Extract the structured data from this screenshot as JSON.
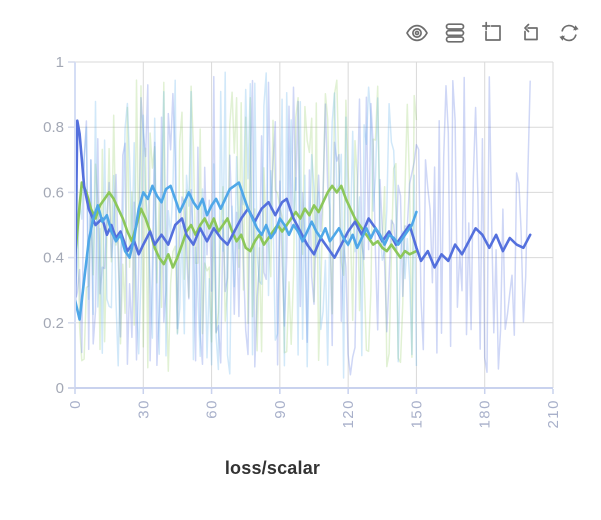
{
  "toolbar": {
    "icons": [
      {
        "name": "visibility-icon"
      },
      {
        "name": "runs-stack-icon"
      },
      {
        "name": "zoom-select-icon"
      },
      {
        "name": "undo-zoom-icon"
      },
      {
        "name": "refresh-icon"
      }
    ]
  },
  "title": "loss/scalar",
  "colors": {
    "grid": "#d9d9d9",
    "axis_line": "#c9d2ee",
    "plot_left_border": "#d5def5",
    "ytick_dash": "#d5dbeb",
    "xtick_label": "#a8b0ca",
    "ytick_label": "#a3a8b5",
    "title_text": "#333333",
    "run_green": "#8CC75A",
    "run_royal_blue": "#5470DD",
    "run_sky_blue": "#4FA7E8"
  },
  "chart_data": {
    "type": "line",
    "title": "loss/scalar",
    "xlabel": "",
    "ylabel": "",
    "xlim": [
      0,
      210
    ],
    "ylim": [
      0,
      1
    ],
    "xticks": [
      0,
      30,
      60,
      90,
      120,
      150,
      180,
      210
    ],
    "yticks": [
      0,
      0.2,
      0.4,
      0.6,
      0.8,
      1
    ],
    "ytick_labels": [
      "0",
      "0.2",
      "0.4",
      "0.6",
      "0.8",
      "1"
    ],
    "grid": true,
    "legend": "none",
    "note": "each run drawn twice: faint raw noisy trace (uniform noise within raw_value_range) and bold smoothed trace",
    "series": [
      {
        "name": "run-green",
        "color": "#8CC75A",
        "raw_opacity": 0.26,
        "raw_seed": 37,
        "raw_step_range": [
          0,
          150
        ],
        "raw_value_range": [
          0.05,
          0.95
        ],
        "smoothed": [
          [
            0,
            0.4
          ],
          [
            2,
            0.56
          ],
          [
            3,
            0.63
          ],
          [
            5,
            0.6
          ],
          [
            7,
            0.55
          ],
          [
            9,
            0.52
          ],
          [
            11,
            0.56
          ],
          [
            13,
            0.58
          ],
          [
            15,
            0.6
          ],
          [
            17,
            0.58
          ],
          [
            19,
            0.55
          ],
          [
            21,
            0.52
          ],
          [
            23,
            0.48
          ],
          [
            25,
            0.45
          ],
          [
            27,
            0.5
          ],
          [
            29,
            0.55
          ],
          [
            31,
            0.52
          ],
          [
            33,
            0.48
          ],
          [
            35,
            0.43
          ],
          [
            37,
            0.4
          ],
          [
            39,
            0.38
          ],
          [
            41,
            0.41
          ],
          [
            43,
            0.37
          ],
          [
            45,
            0.4
          ],
          [
            47,
            0.44
          ],
          [
            49,
            0.48
          ],
          [
            51,
            0.5
          ],
          [
            53,
            0.47
          ],
          [
            55,
            0.5
          ],
          [
            57,
            0.52
          ],
          [
            59,
            0.49
          ],
          [
            61,
            0.52
          ],
          [
            63,
            0.48
          ],
          [
            65,
            0.5
          ],
          [
            67,
            0.52
          ],
          [
            69,
            0.48
          ],
          [
            71,
            0.45
          ],
          [
            73,
            0.47
          ],
          [
            75,
            0.43
          ],
          [
            77,
            0.42
          ],
          [
            79,
            0.45
          ],
          [
            81,
            0.47
          ],
          [
            83,
            0.44
          ],
          [
            85,
            0.46
          ],
          [
            87,
            0.48
          ],
          [
            89,
            0.5
          ],
          [
            91,
            0.48
          ],
          [
            93,
            0.5
          ],
          [
            95,
            0.52
          ],
          [
            97,
            0.54
          ],
          [
            99,
            0.52
          ],
          [
            101,
            0.55
          ],
          [
            103,
            0.53
          ],
          [
            105,
            0.56
          ],
          [
            107,
            0.54
          ],
          [
            109,
            0.57
          ],
          [
            111,
            0.6
          ],
          [
            113,
            0.62
          ],
          [
            115,
            0.6
          ],
          [
            117,
            0.62
          ],
          [
            119,
            0.58
          ],
          [
            121,
            0.55
          ],
          [
            123,
            0.52
          ],
          [
            125,
            0.5
          ],
          [
            127,
            0.48
          ],
          [
            129,
            0.46
          ],
          [
            131,
            0.44
          ],
          [
            133,
            0.45
          ],
          [
            135,
            0.43
          ],
          [
            137,
            0.42
          ],
          [
            139,
            0.44
          ],
          [
            141,
            0.42
          ],
          [
            143,
            0.4
          ],
          [
            145,
            0.42
          ],
          [
            147,
            0.41
          ],
          [
            150,
            0.42
          ]
        ]
      },
      {
        "name": "run-royal-blue",
        "color": "#5470DD",
        "raw_opacity": 0.28,
        "raw_seed": 11,
        "raw_step_range": [
          0,
          200
        ],
        "raw_value_range": [
          0.04,
          0.96
        ],
        "smoothed": [
          [
            0,
            0.28
          ],
          [
            1,
            0.82
          ],
          [
            2,
            0.78
          ],
          [
            4,
            0.62
          ],
          [
            6,
            0.55
          ],
          [
            9,
            0.5
          ],
          [
            12,
            0.52
          ],
          [
            14,
            0.47
          ],
          [
            16,
            0.5
          ],
          [
            18,
            0.46
          ],
          [
            20,
            0.48
          ],
          [
            23,
            0.42
          ],
          [
            26,
            0.45
          ],
          [
            28,
            0.41
          ],
          [
            30,
            0.44
          ],
          [
            33,
            0.48
          ],
          [
            35,
            0.44
          ],
          [
            38,
            0.47
          ],
          [
            41,
            0.44
          ],
          [
            44,
            0.5
          ],
          [
            47,
            0.52
          ],
          [
            49,
            0.47
          ],
          [
            52,
            0.44
          ],
          [
            55,
            0.49
          ],
          [
            58,
            0.45
          ],
          [
            61,
            0.49
          ],
          [
            64,
            0.46
          ],
          [
            67,
            0.44
          ],
          [
            70,
            0.48
          ],
          [
            73,
            0.52
          ],
          [
            76,
            0.55
          ],
          [
            79,
            0.51
          ],
          [
            82,
            0.55
          ],
          [
            85,
            0.57
          ],
          [
            88,
            0.53
          ],
          [
            91,
            0.57
          ],
          [
            93,
            0.58
          ],
          [
            96,
            0.52
          ],
          [
            99,
            0.48
          ],
          [
            102,
            0.44
          ],
          [
            105,
            0.41
          ],
          [
            108,
            0.46
          ],
          [
            111,
            0.43
          ],
          [
            114,
            0.4
          ],
          [
            117,
            0.44
          ],
          [
            120,
            0.48
          ],
          [
            123,
            0.51
          ],
          [
            126,
            0.47
          ],
          [
            129,
            0.52
          ],
          [
            132,
            0.49
          ],
          [
            135,
            0.45
          ],
          [
            138,
            0.48
          ],
          [
            141,
            0.44
          ],
          [
            144,
            0.47
          ],
          [
            147,
            0.5
          ],
          [
            150,
            0.43
          ],
          [
            152,
            0.39
          ],
          [
            155,
            0.42
          ],
          [
            158,
            0.37
          ],
          [
            161,
            0.41
          ],
          [
            164,
            0.39
          ],
          [
            167,
            0.44
          ],
          [
            170,
            0.41
          ],
          [
            173,
            0.45
          ],
          [
            176,
            0.49
          ],
          [
            179,
            0.47
          ],
          [
            182,
            0.43
          ],
          [
            185,
            0.47
          ],
          [
            188,
            0.42
          ],
          [
            191,
            0.46
          ],
          [
            194,
            0.44
          ],
          [
            197,
            0.43
          ],
          [
            200,
            0.47
          ]
        ]
      },
      {
        "name": "run-sky-blue",
        "color": "#4FA7E8",
        "raw_opacity": 0.26,
        "raw_seed": 23,
        "raw_step_range": [
          0,
          150
        ],
        "raw_value_range": [
          0.03,
          0.97
        ],
        "smoothed": [
          [
            0,
            0.27
          ],
          [
            2,
            0.21
          ],
          [
            4,
            0.33
          ],
          [
            6,
            0.45
          ],
          [
            8,
            0.52
          ],
          [
            10,
            0.56
          ],
          [
            12,
            0.51
          ],
          [
            14,
            0.53
          ],
          [
            16,
            0.48
          ],
          [
            18,
            0.45
          ],
          [
            20,
            0.47
          ],
          [
            22,
            0.42
          ],
          [
            24,
            0.4
          ],
          [
            26,
            0.46
          ],
          [
            28,
            0.55
          ],
          [
            30,
            0.6
          ],
          [
            32,
            0.58
          ],
          [
            34,
            0.62
          ],
          [
            36,
            0.59
          ],
          [
            38,
            0.57
          ],
          [
            40,
            0.61
          ],
          [
            42,
            0.62
          ],
          [
            44,
            0.58
          ],
          [
            46,
            0.54
          ],
          [
            48,
            0.57
          ],
          [
            50,
            0.6
          ],
          [
            52,
            0.57
          ],
          [
            54,
            0.55
          ],
          [
            56,
            0.58
          ],
          [
            58,
            0.53
          ],
          [
            60,
            0.56
          ],
          [
            62,
            0.58
          ],
          [
            64,
            0.55
          ],
          [
            66,
            0.58
          ],
          [
            68,
            0.61
          ],
          [
            70,
            0.62
          ],
          [
            72,
            0.63
          ],
          [
            74,
            0.59
          ],
          [
            76,
            0.55
          ],
          [
            78,
            0.52
          ],
          [
            80,
            0.49
          ],
          [
            82,
            0.47
          ],
          [
            84,
            0.5
          ],
          [
            86,
            0.46
          ],
          [
            88,
            0.48
          ],
          [
            90,
            0.52
          ],
          [
            92,
            0.5
          ],
          [
            94,
            0.47
          ],
          [
            96,
            0.5
          ],
          [
            98,
            0.48
          ],
          [
            100,
            0.45
          ],
          [
            102,
            0.48
          ],
          [
            104,
            0.51
          ],
          [
            106,
            0.48
          ],
          [
            108,
            0.46
          ],
          [
            110,
            0.49
          ],
          [
            112,
            0.45
          ],
          [
            114,
            0.47
          ],
          [
            116,
            0.49
          ],
          [
            118,
            0.46
          ],
          [
            120,
            0.44
          ],
          [
            122,
            0.47
          ],
          [
            124,
            0.43
          ],
          [
            126,
            0.46
          ],
          [
            128,
            0.49
          ],
          [
            130,
            0.46
          ],
          [
            132,
            0.49
          ],
          [
            134,
            0.47
          ],
          [
            136,
            0.44
          ],
          [
            138,
            0.47
          ],
          [
            140,
            0.46
          ],
          [
            142,
            0.44
          ],
          [
            144,
            0.46
          ],
          [
            146,
            0.48
          ],
          [
            148,
            0.5
          ],
          [
            150,
            0.54
          ]
        ]
      }
    ]
  }
}
